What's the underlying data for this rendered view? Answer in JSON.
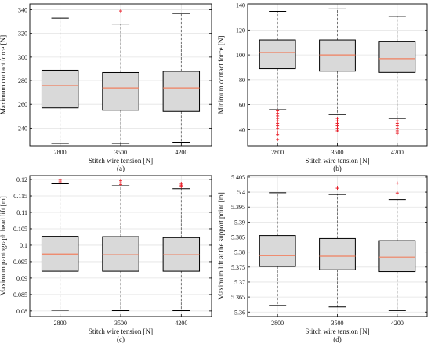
{
  "colors": {
    "box_fill": "#d9d9d9",
    "median": "#f08060",
    "outlier": "#e8202a",
    "grid": "#e3e3e3",
    "frame": "#000000"
  },
  "chart_data": [
    {
      "type": "box",
      "caption": "(a)",
      "xlabel": "Stitch wire tension  [N]",
      "ylabel": "Maximum contact force  [N]",
      "categories": [
        "2800",
        "3500",
        "4200"
      ],
      "ylim": [
        225,
        345
      ],
      "yticks": [
        240,
        260,
        280,
        300,
        320,
        340
      ],
      "ytick_labels": [
        "240",
        "260",
        "280",
        "300",
        "320",
        "340"
      ],
      "grid": true,
      "boxes": [
        {
          "category": "2800",
          "whisker_low": 227,
          "q1": 257,
          "median": 276,
          "q3": 289,
          "whisker_high": 333,
          "outliers": []
        },
        {
          "category": "3500",
          "whisker_low": 227,
          "q1": 255,
          "median": 274,
          "q3": 287,
          "whisker_high": 328,
          "outliers": [
            339
          ]
        },
        {
          "category": "4200",
          "whisker_low": 228,
          "q1": 254,
          "median": 274,
          "q3": 288,
          "whisker_high": 337,
          "outliers": []
        }
      ]
    },
    {
      "type": "box",
      "caption": "(b)",
      "xlabel": "Stitch wire tension  [N]",
      "ylabel": "Minimum contact force  [N]",
      "categories": [
        "2800",
        "3500",
        "4200"
      ],
      "ylim": [
        27,
        141
      ],
      "yticks": [
        40,
        60,
        80,
        100,
        120,
        140
      ],
      "ytick_labels": [
        "40",
        "60",
        "80",
        "100",
        "120",
        "140"
      ],
      "grid": true,
      "boxes": [
        {
          "category": "2800",
          "whisker_low": 56,
          "q1": 89,
          "median": 102,
          "q3": 112,
          "whisker_high": 135,
          "outliers": [
            55,
            53,
            51,
            49,
            47,
            45,
            43,
            41,
            38,
            36,
            32
          ]
        },
        {
          "category": "3500",
          "whisker_low": 52,
          "q1": 87,
          "median": 100,
          "q3": 112,
          "whisker_high": 137,
          "outliers": [
            49,
            47,
            45,
            43,
            41,
            39
          ]
        },
        {
          "category": "4200",
          "whisker_low": 49,
          "q1": 86,
          "median": 97,
          "q3": 111,
          "whisker_high": 131,
          "outliers": [
            47,
            45,
            43,
            41,
            39,
            37
          ]
        }
      ]
    },
    {
      "type": "box",
      "caption": "(c)",
      "xlabel": "Stitch wire tension  [N]",
      "ylabel": "Maximum pantograph head lift  [m]",
      "categories": [
        "2800",
        "3500",
        "4200"
      ],
      "ylim": [
        0.0783,
        0.1212
      ],
      "yticks": [
        0.08,
        0.085,
        0.09,
        0.095,
        0.1,
        0.105,
        0.11,
        0.115,
        0.12
      ],
      "ytick_labels": [
        "0.08",
        "0.085",
        "0.09",
        "0.095",
        "0.1",
        "0.105",
        "0.11",
        "0.115",
        "0.12"
      ],
      "grid": true,
      "boxes": [
        {
          "category": "2800",
          "whisker_low": 0.0802,
          "q1": 0.0921,
          "median": 0.0973,
          "q3": 0.1027,
          "whisker_high": 0.1187,
          "outliers": [
            0.1193,
            0.1198
          ]
        },
        {
          "category": "3500",
          "whisker_low": 0.0801,
          "q1": 0.0921,
          "median": 0.0971,
          "q3": 0.1026,
          "whisker_high": 0.1181,
          "outliers": [
            0.1185,
            0.119,
            0.1196
          ]
        },
        {
          "category": "4200",
          "whisker_low": 0.0801,
          "q1": 0.0921,
          "median": 0.0971,
          "q3": 0.1023,
          "whisker_high": 0.1172,
          "outliers": [
            0.1178,
            0.1183,
            0.1188
          ]
        }
      ]
    },
    {
      "type": "box",
      "caption": "(d)",
      "xlabel": "Stitch wire tension  [N]",
      "ylabel": "Maximum lift at the support point  [m]",
      "categories": [
        "2800",
        "3500",
        "4200"
      ],
      "ylim": [
        5.3585,
        5.4055
      ],
      "yticks": [
        5.36,
        5.365,
        5.37,
        5.375,
        5.38,
        5.385,
        5.39,
        5.395,
        5.4,
        5.405
      ],
      "ytick_labels": [
        "5.36",
        "5.365",
        "5.37",
        "5.375",
        "5.38",
        "5.385",
        "5.39",
        "5.395",
        "5.4",
        "5.405"
      ],
      "grid": true,
      "boxes": [
        {
          "category": "2800",
          "whisker_low": 5.3622,
          "q1": 5.3752,
          "median": 5.3788,
          "q3": 5.3855,
          "whisker_high": 5.3998,
          "outliers": []
        },
        {
          "category": "3500",
          "whisker_low": 5.3617,
          "q1": 5.3741,
          "median": 5.3786,
          "q3": 5.3845,
          "whisker_high": 5.3992,
          "outliers": [
            5.4013
          ]
        },
        {
          "category": "4200",
          "whisker_low": 5.3605,
          "q1": 5.3735,
          "median": 5.3783,
          "q3": 5.3838,
          "whisker_high": 5.3975,
          "outliers": [
            5.3997,
            5.403
          ]
        }
      ]
    }
  ]
}
